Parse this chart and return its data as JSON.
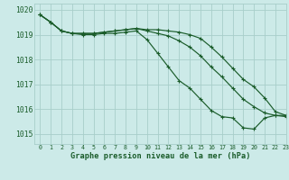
{
  "title": "Graphe pression niveau de la mer (hPa)",
  "bg_color": "#cceae8",
  "grid_color": "#a8ceca",
  "line_color": "#1a5c2a",
  "xlim": [
    -0.5,
    23
  ],
  "ylim": [
    1014.6,
    1020.25
  ],
  "yticks": [
    1015,
    1016,
    1017,
    1018,
    1019,
    1020
  ],
  "xticks": [
    0,
    1,
    2,
    3,
    4,
    5,
    6,
    7,
    8,
    9,
    10,
    11,
    12,
    13,
    14,
    15,
    16,
    17,
    18,
    19,
    20,
    21,
    22,
    23
  ],
  "line1_x": [
    0,
    1,
    2,
    3,
    4,
    5,
    6,
    7,
    8,
    9,
    10,
    11,
    12,
    13,
    14,
    15,
    16,
    17,
    18,
    19,
    20,
    21,
    22,
    23
  ],
  "line1_y": [
    1019.8,
    1019.5,
    1019.15,
    1019.05,
    1019.0,
    1019.0,
    1019.05,
    1019.05,
    1019.1,
    1019.15,
    1018.8,
    1018.25,
    1017.7,
    1017.15,
    1016.85,
    1016.4,
    1015.95,
    1015.7,
    1015.65,
    1015.25,
    1015.2,
    1015.65,
    1015.75,
    1015.75
  ],
  "line2_x": [
    0,
    1,
    2,
    3,
    4,
    5,
    6,
    7,
    8,
    9,
    10,
    11,
    12,
    13,
    14,
    15,
    16,
    17,
    18,
    19,
    20,
    21,
    22,
    23
  ],
  "line2_y": [
    1019.8,
    1019.5,
    1019.15,
    1019.05,
    1019.05,
    1019.05,
    1019.1,
    1019.15,
    1019.2,
    1019.25,
    1019.2,
    1019.2,
    1019.15,
    1019.1,
    1019.0,
    1018.85,
    1018.5,
    1018.1,
    1017.65,
    1017.2,
    1016.9,
    1016.45,
    1015.9,
    1015.75
  ],
  "line3_x": [
    0,
    1,
    2,
    3,
    4,
    5,
    6,
    7,
    8,
    9,
    10,
    11,
    12,
    13,
    14,
    15,
    16,
    17,
    18,
    19,
    20,
    21,
    22,
    23
  ],
  "line3_y": [
    1019.8,
    1019.5,
    1019.15,
    1019.05,
    1019.05,
    1019.05,
    1019.1,
    1019.15,
    1019.2,
    1019.25,
    1019.15,
    1019.05,
    1018.95,
    1018.75,
    1018.5,
    1018.15,
    1017.7,
    1017.3,
    1016.85,
    1016.4,
    1016.1,
    1015.85,
    1015.75,
    1015.7
  ]
}
